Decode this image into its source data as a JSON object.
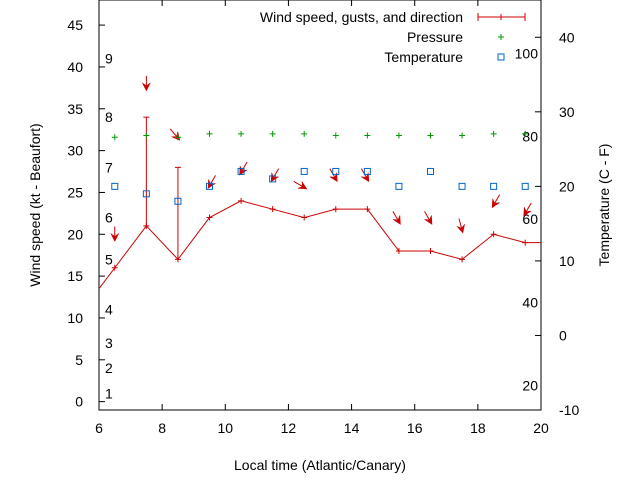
{
  "chart_data": {
    "type": "line",
    "xlabel": "Local time (Atlantic/Canary)",
    "ylabel": "Wind speed (kt - Beaufort)",
    "y2label": "Temperature (C - F)",
    "xlim": [
      6,
      20
    ],
    "ylim": [
      -1,
      48
    ],
    "y2lim": [
      -10,
      45
    ],
    "x_ticks": [
      6,
      8,
      10,
      12,
      14,
      16,
      18,
      20
    ],
    "y_ticks": [
      0,
      5,
      10,
      15,
      20,
      25,
      30,
      35,
      40,
      45
    ],
    "y2_ticks": [
      -10,
      0,
      10,
      20,
      30,
      40
    ],
    "beaufort_labels": [
      {
        "text": "1",
        "kt": 1
      },
      {
        "text": "2",
        "kt": 4
      },
      {
        "text": "3",
        "kt": 7
      },
      {
        "text": "4",
        "kt": 11
      },
      {
        "text": "5",
        "kt": 17
      },
      {
        "text": "6",
        "kt": 22
      },
      {
        "text": "7",
        "kt": 28
      },
      {
        "text": "8",
        "kt": 34
      },
      {
        "text": "9",
        "kt": 41
      }
    ],
    "fahrenheit_labels": [
      {
        "text": "20",
        "temp_c": -6.7
      },
      {
        "text": "40",
        "temp_c": 4.4
      },
      {
        "text": "60",
        "temp_c": 15.6
      },
      {
        "text": "80",
        "temp_c": 26.7
      },
      {
        "text": "100",
        "temp_c": 37.8
      }
    ],
    "legend": [
      {
        "label": "Wind speed, gusts, and direction",
        "series": "wind"
      },
      {
        "label": "Pressure",
        "series": "pressure"
      },
      {
        "label": "Temperature",
        "series": "temperature"
      }
    ],
    "series": [
      {
        "name": "Wind speed",
        "color": "#cc0000",
        "x": [
          6,
          6.5,
          7.5,
          8.5,
          9.5,
          10.5,
          11.5,
          12.5,
          13.5,
          14.5,
          15.5,
          16.5,
          17.5,
          18.5,
          19.5,
          20
        ],
        "values": [
          13.5,
          16,
          21,
          17,
          22,
          24,
          23,
          22,
          23,
          23,
          18,
          18,
          17,
          20,
          19,
          19
        ]
      },
      {
        "name": "Gusts",
        "color": "#cc0000",
        "x": [
          7.5,
          8.5
        ],
        "values": [
          34,
          28
        ]
      },
      {
        "name": "Wind direction",
        "color": "#cc0000",
        "x": [
          6.5,
          7.5,
          8.5,
          9.5,
          10.5,
          11.5,
          12.5,
          13.5,
          14.5,
          15.5,
          16.5,
          17.5,
          18.5,
          19.5
        ],
        "y": [
          19.5,
          37.5,
          31.5,
          25.8,
          27.4,
          26.6,
          25.6,
          26.6,
          26.6,
          21.5,
          21.5,
          20.5,
          23.5,
          22.5
        ],
        "direction_deg": [
          0,
          0,
          320,
          30,
          30,
          30,
          300,
          330,
          330,
          330,
          330,
          345,
          30,
          30
        ]
      },
      {
        "name": "Pressure",
        "color": "#009900",
        "x": [
          6.5,
          7.5,
          8.5,
          9.5,
          10.5,
          11.5,
          12.5,
          13.5,
          14.5,
          15.5,
          16.5,
          17.5,
          18.5,
          19.5
        ],
        "values": [
          31.6,
          31.8,
          31.6,
          32,
          32,
          32,
          32,
          31.8,
          31.8,
          31.8,
          31.8,
          31.8,
          32,
          32
        ]
      },
      {
        "name": "Temperature",
        "color": "#0066cc",
        "x": [
          6.5,
          7.5,
          8.5,
          9.5,
          10.5,
          11.5,
          12.5,
          13.5,
          14.5,
          15.5,
          16.5,
          17.5,
          18.5,
          19.5
        ],
        "values": [
          20,
          19,
          18,
          20,
          22,
          21,
          22,
          22,
          22,
          20,
          22,
          20,
          20,
          20
        ]
      }
    ]
  }
}
